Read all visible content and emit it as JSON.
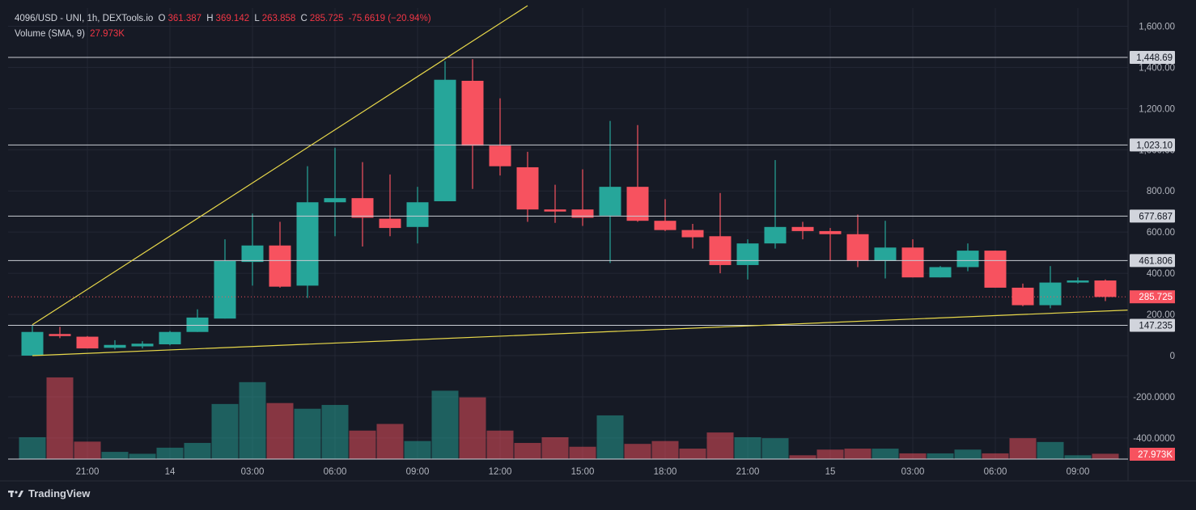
{
  "legend": {
    "symbol": "4096/USD - UNI, 1h, DEXTools.io",
    "o_label": "O",
    "o": "361.387",
    "h_label": "H",
    "h": "369.142",
    "l_label": "L",
    "l": "263.858",
    "c_label": "C",
    "c": "285.725",
    "change": "-75.6619 (−20.94%)",
    "volume_label": "Volume (SMA, 9)",
    "volume_value": "27.973K"
  },
  "branding": {
    "name": "TradingView"
  },
  "colors": {
    "up": "#26a69a",
    "down": "#f7525f",
    "background": "#161a25",
    "trendline": "#e8d84a"
  },
  "chart_data": {
    "type": "candlestick",
    "y_ticks": [
      "1,600.00",
      "1,400.00",
      "1,200.00",
      "1,000.00",
      "800.00",
      "600.00",
      "400.00",
      "200.00",
      "0",
      "-200.0000",
      "-400.0000"
    ],
    "y_tick_values": [
      1600,
      1400,
      1200,
      1000,
      800,
      600,
      400,
      200,
      0,
      -200,
      -400
    ],
    "x_ticks": [
      {
        "label": "21:00",
        "bar": 2
      },
      {
        "label": "14",
        "bar": 5
      },
      {
        "label": "03:00",
        "bar": 8
      },
      {
        "label": "06:00",
        "bar": 11
      },
      {
        "label": "09:00",
        "bar": 14
      },
      {
        "label": "12:00",
        "bar": 17
      },
      {
        "label": "15:00",
        "bar": 20
      },
      {
        "label": "18:00",
        "bar": 23
      },
      {
        "label": "21:00",
        "bar": 26
      },
      {
        "label": "15",
        "bar": 29
      },
      {
        "label": "03:00",
        "bar": 32
      },
      {
        "label": "06:00",
        "bar": 35
      },
      {
        "label": "09:00",
        "bar": 38
      }
    ],
    "ylim": [
      -500,
      1700
    ],
    "candles": [
      {
        "o": 0,
        "h": 145,
        "l": 0,
        "c": 115
      },
      {
        "o": 105,
        "h": 140,
        "l": 85,
        "c": 95
      },
      {
        "o": 92,
        "h": 95,
        "l": 35,
        "c": 35
      },
      {
        "o": 38,
        "h": 75,
        "l": 30,
        "c": 52
      },
      {
        "o": 45,
        "h": 70,
        "l": 35,
        "c": 58
      },
      {
        "o": 55,
        "h": 120,
        "l": 50,
        "c": 115
      },
      {
        "o": 115,
        "h": 225,
        "l": 115,
        "c": 185
      },
      {
        "o": 180,
        "h": 565,
        "l": 180,
        "c": 460
      },
      {
        "o": 455,
        "h": 690,
        "l": 340,
        "c": 535
      },
      {
        "o": 535,
        "h": 650,
        "l": 330,
        "c": 335
      },
      {
        "o": 340,
        "h": 920,
        "l": 280,
        "c": 745
      },
      {
        "o": 745,
        "h": 1010,
        "l": 580,
        "c": 765
      },
      {
        "o": 765,
        "h": 940,
        "l": 530,
        "c": 670
      },
      {
        "o": 665,
        "h": 880,
        "l": 580,
        "c": 620
      },
      {
        "o": 625,
        "h": 820,
        "l": 545,
        "c": 745
      },
      {
        "o": 750,
        "h": 1430,
        "l": 750,
        "c": 1340
      },
      {
        "o": 1335,
        "h": 1440,
        "l": 810,
        "c": 1020
      },
      {
        "o": 1020,
        "h": 1250,
        "l": 875,
        "c": 920
      },
      {
        "o": 915,
        "h": 990,
        "l": 650,
        "c": 710
      },
      {
        "o": 710,
        "h": 830,
        "l": 645,
        "c": 700
      },
      {
        "o": 710,
        "h": 905,
        "l": 630,
        "c": 670
      },
      {
        "o": 680,
        "h": 1140,
        "l": 450,
        "c": 820
      },
      {
        "o": 820,
        "h": 1120,
        "l": 650,
        "c": 655
      },
      {
        "o": 655,
        "h": 760,
        "l": 605,
        "c": 610
      },
      {
        "o": 610,
        "h": 640,
        "l": 520,
        "c": 575
      },
      {
        "o": 580,
        "h": 790,
        "l": 400,
        "c": 440
      },
      {
        "o": 440,
        "h": 565,
        "l": 370,
        "c": 545
      },
      {
        "o": 545,
        "h": 950,
        "l": 520,
        "c": 625
      },
      {
        "o": 625,
        "h": 650,
        "l": 565,
        "c": 605
      },
      {
        "o": 605,
        "h": 620,
        "l": 460,
        "c": 590
      },
      {
        "o": 590,
        "h": 685,
        "l": 430,
        "c": 460
      },
      {
        "o": 460,
        "h": 655,
        "l": 375,
        "c": 525
      },
      {
        "o": 525,
        "h": 565,
        "l": 380,
        "c": 380
      },
      {
        "o": 380,
        "h": 435,
        "l": 380,
        "c": 430
      },
      {
        "o": 430,
        "h": 545,
        "l": 410,
        "c": 510
      },
      {
        "o": 510,
        "h": 510,
        "l": 330,
        "c": 330
      },
      {
        "o": 330,
        "h": 350,
        "l": 240,
        "c": 245
      },
      {
        "o": 245,
        "h": 435,
        "l": 230,
        "c": 355
      },
      {
        "o": 355,
        "h": 380,
        "l": 350,
        "c": 365
      },
      {
        "o": 365,
        "h": 370,
        "l": 265,
        "c": 285
      }
    ],
    "volume": [
      {
        "v": 115,
        "up": true
      },
      {
        "v": 430,
        "up": false
      },
      {
        "v": 92,
        "up": false
      },
      {
        "v": 38,
        "up": true
      },
      {
        "v": 28,
        "up": true
      },
      {
        "v": 60,
        "up": true
      },
      {
        "v": 85,
        "up": true
      },
      {
        "v": 290,
        "up": true
      },
      {
        "v": 405,
        "up": true
      },
      {
        "v": 295,
        "up": false
      },
      {
        "v": 265,
        "up": true
      },
      {
        "v": 285,
        "up": true
      },
      {
        "v": 150,
        "up": false
      },
      {
        "v": 185,
        "up": false
      },
      {
        "v": 95,
        "up": true
      },
      {
        "v": 360,
        "up": true
      },
      {
        "v": 325,
        "up": false
      },
      {
        "v": 150,
        "up": false
      },
      {
        "v": 85,
        "up": false
      },
      {
        "v": 115,
        "up": false
      },
      {
        "v": 65,
        "up": false
      },
      {
        "v": 230,
        "up": true
      },
      {
        "v": 80,
        "up": false
      },
      {
        "v": 95,
        "up": false
      },
      {
        "v": 55,
        "up": false
      },
      {
        "v": 140,
        "up": false
      },
      {
        "v": 115,
        "up": true
      },
      {
        "v": 110,
        "up": true
      },
      {
        "v": 20,
        "up": false
      },
      {
        "v": 50,
        "up": false
      },
      {
        "v": 55,
        "up": false
      },
      {
        "v": 55,
        "up": true
      },
      {
        "v": 30,
        "up": false
      },
      {
        "v": 30,
        "up": true
      },
      {
        "v": 50,
        "up": true
      },
      {
        "v": 30,
        "up": false
      },
      {
        "v": 110,
        "up": false
      },
      {
        "v": 90,
        "up": true
      },
      {
        "v": 20,
        "up": true
      },
      {
        "v": 28,
        "up": false
      }
    ],
    "horizontal_lines": [
      {
        "value": 1448.69,
        "label": "1,448.69"
      },
      {
        "value": 1023.1,
        "label": "1,023.10"
      },
      {
        "value": 677.687,
        "label": "677.687"
      },
      {
        "value": 461.806,
        "label": "461.806"
      },
      {
        "value": 147.235,
        "label": "147.235"
      }
    ],
    "last_price": {
      "value": 285.725,
      "label": "285.725"
    },
    "volume_sma_label": "27.973K",
    "trendlines": [
      {
        "from": {
          "bar": 0,
          "price": 150
        },
        "to": {
          "bar": 18,
          "price": 1700
        }
      },
      {
        "from": {
          "bar": 0,
          "price": 0
        },
        "to": {
          "bar": 40.5,
          "price": 225
        }
      }
    ]
  }
}
